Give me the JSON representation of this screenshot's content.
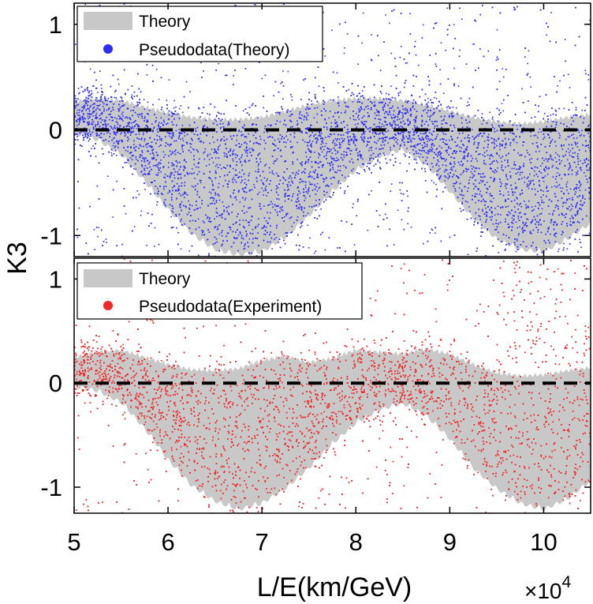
{
  "chart_data": [
    {
      "type": "scatter",
      "panel": "top",
      "xlabel": "L/E(km/GeV)",
      "ylabel": "K3",
      "x_multiplier_label": "×10",
      "x_multiplier_exp": "4",
      "xlim": [
        5.0,
        10.5
      ],
      "ylim": [
        -1.2,
        1.2
      ],
      "xticks": [
        5,
        6,
        7,
        8,
        9,
        10
      ],
      "yticks": [
        1,
        0,
        -1
      ],
      "ytick_labels": [
        "1",
        "0",
        "-1"
      ],
      "zero_reference_line": 0,
      "legend_position": "top-left",
      "series": [
        {
          "name": "Theory",
          "kind": "band",
          "color": "#c8c8c8",
          "x": [
            5.0,
            5.25,
            5.5,
            5.75,
            6.0,
            6.25,
            6.5,
            6.75,
            7.0,
            7.25,
            7.5,
            7.75,
            8.0,
            8.25,
            8.5,
            8.75,
            9.0,
            9.25,
            9.5,
            9.75,
            10.0,
            10.25,
            10.5
          ],
          "upper": [
            0.27,
            0.3,
            0.28,
            0.22,
            0.16,
            0.12,
            0.1,
            0.1,
            0.12,
            0.18,
            0.24,
            0.28,
            0.3,
            0.3,
            0.28,
            0.24,
            0.18,
            0.12,
            0.08,
            0.06,
            0.08,
            0.12,
            0.15
          ],
          "lower": [
            0.0,
            -0.06,
            -0.2,
            -0.45,
            -0.72,
            -0.95,
            -1.1,
            -1.15,
            -1.12,
            -0.98,
            -0.78,
            -0.55,
            -0.35,
            -0.22,
            -0.15,
            -0.3,
            -0.55,
            -0.8,
            -1.0,
            -1.1,
            -1.12,
            -1.0,
            -0.85
          ]
        },
        {
          "name": "Pseudodata(Theory)",
          "kind": "points",
          "color": "#2d2df5",
          "point_count": 9000,
          "x_range": [
            5.0,
            10.5
          ],
          "y_range": [
            -1.2,
            1.2
          ]
        }
      ]
    },
    {
      "type": "scatter",
      "panel": "bottom",
      "xlabel": "L/E(km/GeV)",
      "ylabel": "K3",
      "xlim": [
        5.0,
        10.5
      ],
      "ylim": [
        -1.25,
        1.2
      ],
      "xticks": [
        5,
        6,
        7,
        8,
        9,
        10
      ],
      "yticks": [
        1,
        0,
        -1
      ],
      "ytick_labels": [
        "1",
        "0",
        "-1"
      ],
      "zero_reference_line": 0,
      "legend_position": "top-left",
      "series": [
        {
          "name": "Theory",
          "kind": "band",
          "color": "#c8c8c8",
          "x": [
            5.0,
            5.25,
            5.5,
            5.75,
            6.0,
            6.25,
            6.5,
            6.75,
            7.0,
            7.25,
            7.5,
            7.75,
            8.0,
            8.25,
            8.5,
            8.75,
            9.0,
            9.25,
            9.5,
            9.75,
            10.0,
            10.25,
            10.5
          ],
          "upper": [
            0.25,
            0.3,
            0.32,
            0.25,
            0.18,
            0.13,
            0.12,
            0.14,
            0.22,
            0.26,
            0.2,
            0.24,
            0.32,
            0.3,
            0.28,
            0.33,
            0.28,
            0.18,
            0.1,
            0.07,
            0.08,
            0.12,
            0.15
          ],
          "lower": [
            0.0,
            -0.04,
            -0.15,
            -0.4,
            -0.7,
            -0.95,
            -1.1,
            -1.18,
            -1.12,
            -0.98,
            -0.78,
            -0.55,
            -0.35,
            -0.22,
            -0.16,
            -0.28,
            -0.5,
            -0.78,
            -0.98,
            -1.12,
            -1.18,
            -1.08,
            -0.9
          ]
        },
        {
          "name": "Pseudodata(Experiment)",
          "kind": "points",
          "color": "#f02828",
          "point_count": 9000,
          "x_range": [
            5.0,
            10.5
          ],
          "y_range": [
            -1.25,
            1.2
          ]
        }
      ]
    }
  ]
}
